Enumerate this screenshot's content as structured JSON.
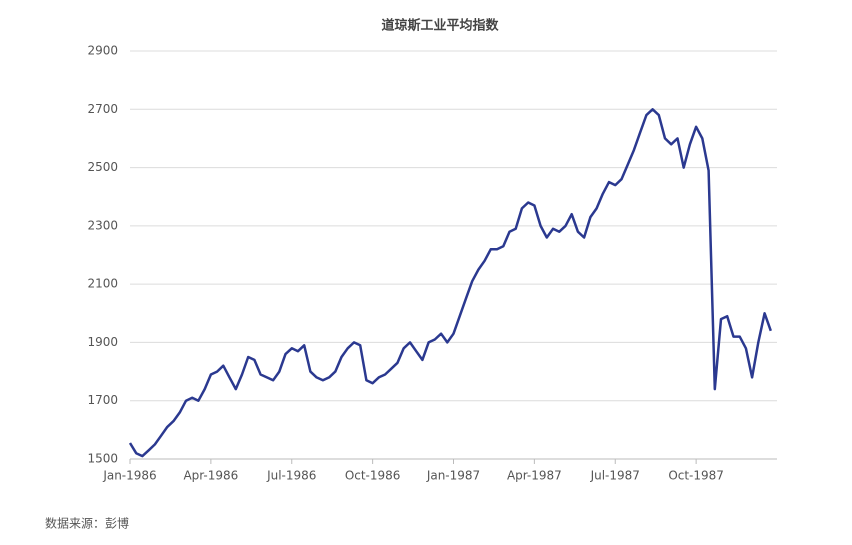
{
  "chart_data": {
    "type": "line",
    "title": "道琼斯工业平均指数",
    "source": "数据来源：彭博",
    "categories": [
      "Jan-1986",
      null,
      null,
      null,
      null,
      null,
      null,
      null,
      null,
      null,
      null,
      null,
      null,
      "Apr-1986",
      null,
      null,
      null,
      null,
      null,
      null,
      null,
      null,
      null,
      null,
      null,
      null,
      "Jul-1986",
      null,
      null,
      null,
      null,
      null,
      null,
      null,
      null,
      null,
      null,
      null,
      null,
      "Oct-1986",
      null,
      null,
      null,
      null,
      null,
      null,
      null,
      null,
      null,
      null,
      null,
      null,
      "Jan-1987",
      null,
      null,
      null,
      null,
      null,
      null,
      null,
      null,
      null,
      null,
      null,
      null,
      "Apr-1987",
      null,
      null,
      null,
      null,
      null,
      null,
      null,
      null,
      null,
      null,
      null,
      null,
      "Jul-1987",
      null,
      null,
      null,
      null,
      null,
      null,
      null,
      null,
      null,
      null,
      null,
      null,
      "Oct-1987",
      null,
      null,
      null,
      null,
      null,
      null,
      null,
      null,
      null,
      null,
      null,
      null
    ],
    "series": [
      {
        "name": "道琼斯工业平均指数",
        "color": "#2b3990",
        "values": [
          1555,
          1520,
          1510,
          1530,
          1550,
          1580,
          1610,
          1630,
          1660,
          1700,
          1710,
          1700,
          1740,
          1790,
          1800,
          1820,
          1780,
          1740,
          1790,
          1850,
          1840,
          1790,
          1780,
          1770,
          1800,
          1860,
          1880,
          1870,
          1890,
          1800,
          1780,
          1770,
          1780,
          1800,
          1850,
          1880,
          1900,
          1890,
          1770,
          1760,
          1780,
          1790,
          1810,
          1830,
          1880,
          1900,
          1870,
          1840,
          1900,
          1910,
          1930,
          1900,
          1930,
          1990,
          2050,
          2110,
          2150,
          2180,
          2220,
          2220,
          2230,
          2280,
          2290,
          2360,
          2380,
          2370,
          2300,
          2260,
          2290,
          2280,
          2300,
          2340,
          2280,
          2260,
          2330,
          2360,
          2410,
          2450,
          2440,
          2460,
          2510,
          2560,
          2620,
          2680,
          2700,
          2680,
          2600,
          2580,
          2600,
          2500,
          2580,
          2640,
          2600,
          2490,
          1740,
          1980,
          1990,
          1920,
          1920,
          1880,
          1780,
          1900,
          2000,
          1940
        ]
      }
    ],
    "ylim": [
      1500,
      2900
    ],
    "yticks": [
      1500,
      1700,
      1900,
      2100,
      2300,
      2500,
      2700,
      2900
    ],
    "grid": true
  }
}
